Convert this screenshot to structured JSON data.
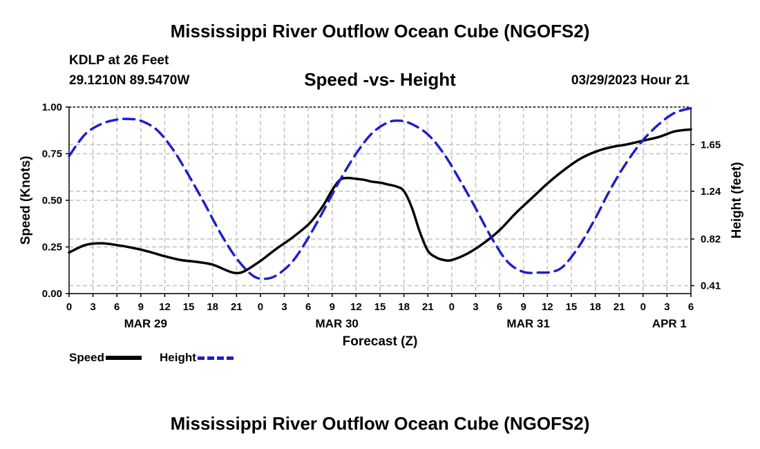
{
  "header": {
    "title": "Mississippi River Outflow Ocean Cube (NGOFS2)",
    "station": "KDLP at 26 Feet",
    "coords": "29.1210N  89.5470W",
    "subtitle": "Speed -vs- Height",
    "datetime": "03/29/2023 Hour 21",
    "footer_title": "Mississippi River Outflow Ocean Cube (NGOFS2)"
  },
  "legend": {
    "speed_label": "Speed",
    "height_label": "Height"
  },
  "colors": {
    "speed": "#000000",
    "height": "#1f1fc8",
    "grid": "#c0c0c0"
  },
  "chart_data": {
    "type": "line",
    "title": "Speed -vs- Height",
    "xlabel": "Forecast (Z)",
    "ylabel": "Speed (Knots)",
    "y2label": "Height (feet)",
    "xlim": [
      0,
      78
    ],
    "ylim": [
      0,
      1.0
    ],
    "y2lim": [
      0.34,
      1.98
    ],
    "x_tick_labels": [
      "0",
      "3",
      "6",
      "9",
      "12",
      "15",
      "18",
      "21",
      "0",
      "3",
      "6",
      "9",
      "12",
      "15",
      "18",
      "21",
      "0",
      "3",
      "6",
      "9",
      "12",
      "15",
      "18",
      "21",
      "0",
      "3",
      "6"
    ],
    "y_ticks": [
      "0.00",
      "0.25",
      "0.50",
      "0.75",
      "1.00"
    ],
    "y2_ticks": [
      "0.41",
      "0.82",
      "1.24",
      "1.65"
    ],
    "date_labels": [
      {
        "label": "MAR 29",
        "x": 9.6
      },
      {
        "label": "MAR 30",
        "x": 33.6
      },
      {
        "label": "MAR 31",
        "x": 57.6
      },
      {
        "label": "APR 1",
        "x": 75.3
      }
    ],
    "series": [
      {
        "name": "Speed",
        "axis": "left",
        "x": [
          0,
          2,
          4,
          6,
          8,
          10,
          12,
          14,
          16,
          18,
          20,
          21,
          22,
          24,
          26,
          28,
          30,
          31,
          32,
          33,
          34,
          35,
          36,
          37,
          38,
          39,
          40,
          41,
          42,
          43,
          44,
          45,
          46,
          47,
          48,
          50,
          52,
          54,
          56,
          58,
          60,
          62,
          64,
          66,
          68,
          70,
          72,
          74,
          76,
          78
        ],
        "values": [
          0.22,
          0.26,
          0.27,
          0.26,
          0.245,
          0.225,
          0.2,
          0.18,
          0.17,
          0.155,
          0.12,
          0.11,
          0.12,
          0.175,
          0.24,
          0.3,
          0.37,
          0.42,
          0.48,
          0.555,
          0.61,
          0.62,
          0.615,
          0.61,
          0.6,
          0.595,
          0.585,
          0.575,
          0.55,
          0.46,
          0.33,
          0.23,
          0.195,
          0.18,
          0.18,
          0.215,
          0.27,
          0.34,
          0.43,
          0.51,
          0.59,
          0.66,
          0.72,
          0.76,
          0.785,
          0.8,
          0.82,
          0.84,
          0.87,
          0.88
        ]
      },
      {
        "name": "Height",
        "axis": "right",
        "x": [
          0,
          2,
          4,
          6,
          7.5,
          9,
          11,
          13,
          15,
          17,
          19,
          21,
          23,
          24.5,
          26,
          28,
          30,
          32,
          34,
          36,
          38,
          40,
          41.5,
          43,
          45,
          47,
          49,
          51,
          53,
          55,
          57,
          59,
          60.5,
          62,
          64,
          66,
          68,
          70,
          72,
          74,
          76,
          78
        ],
        "values": [
          1.55,
          1.74,
          1.83,
          1.87,
          1.875,
          1.86,
          1.78,
          1.61,
          1.38,
          1.13,
          0.87,
          0.65,
          0.5,
          0.47,
          0.5,
          0.62,
          0.83,
          1.08,
          1.34,
          1.57,
          1.75,
          1.845,
          1.86,
          1.83,
          1.74,
          1.57,
          1.34,
          1.09,
          0.83,
          0.62,
          0.53,
          0.525,
          0.53,
          0.58,
          0.76,
          1.0,
          1.27,
          1.5,
          1.69,
          1.83,
          1.93,
          1.97
        ]
      }
    ]
  }
}
